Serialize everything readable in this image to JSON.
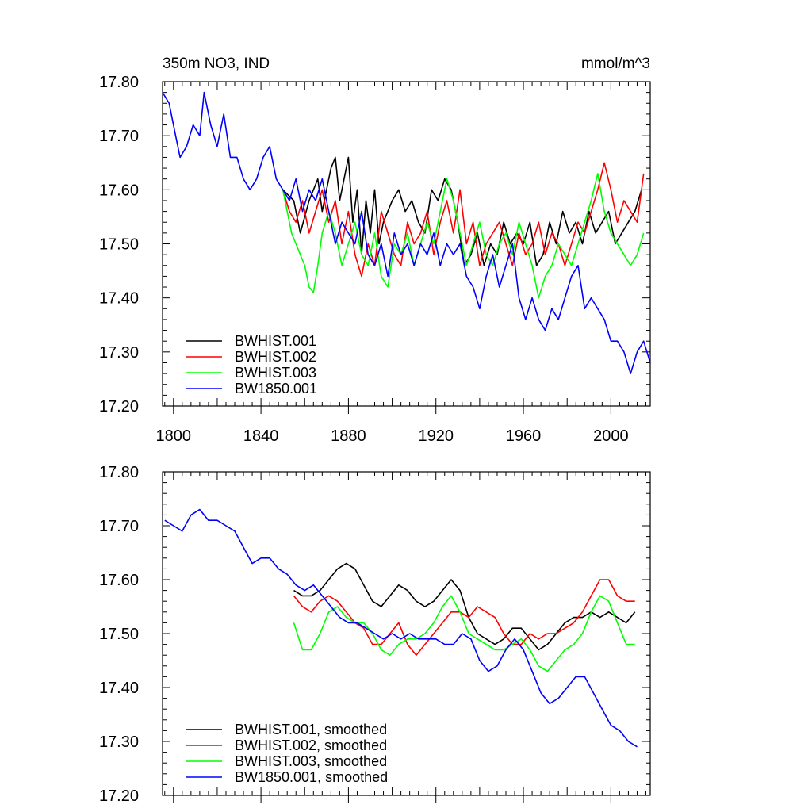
{
  "chart_data": [
    {
      "type": "line",
      "title": "350m NO3, IND",
      "units": "mmol/m^3",
      "xlim": [
        1795,
        2018
      ],
      "ylim": [
        17.2,
        17.8
      ],
      "yticks": [
        "17.20",
        "17.30",
        "17.40",
        "17.50",
        "17.60",
        "17.70",
        "17.80"
      ],
      "xticks": [
        "1800",
        "1840",
        "1880",
        "1920",
        "1960",
        "2000"
      ],
      "legend_position": "bottom-left",
      "series": [
        {
          "name": "BWHIST.001",
          "color": "#000000",
          "x": [
            1850,
            1855,
            1858,
            1862,
            1866,
            1868,
            1870,
            1872,
            1874,
            1876,
            1878,
            1880,
            1882,
            1884,
            1886,
            1888,
            1890,
            1892,
            1894,
            1896,
            1900,
            1903,
            1906,
            1909,
            1912,
            1915,
            1918,
            1921,
            1924,
            1927,
            1930,
            1933,
            1936,
            1939,
            1942,
            1945,
            1948,
            1951,
            1954,
            1957,
            1960,
            1963,
            1966,
            1969,
            1972,
            1975,
            1978,
            1981,
            1984,
            1987,
            1990,
            1993,
            1996,
            1999,
            2002,
            2005,
            2008,
            2011,
            2014
          ],
          "y": [
            17.6,
            17.58,
            17.52,
            17.58,
            17.62,
            17.56,
            17.6,
            17.64,
            17.66,
            17.58,
            17.62,
            17.66,
            17.54,
            17.6,
            17.48,
            17.58,
            17.52,
            17.6,
            17.5,
            17.54,
            17.58,
            17.6,
            17.56,
            17.58,
            17.54,
            17.52,
            17.6,
            17.58,
            17.62,
            17.6,
            17.54,
            17.46,
            17.48,
            17.52,
            17.46,
            17.5,
            17.48,
            17.54,
            17.5,
            17.52,
            17.5,
            17.54,
            17.46,
            17.48,
            17.54,
            17.5,
            17.56,
            17.52,
            17.54,
            17.5,
            17.56,
            17.52,
            17.54,
            17.56,
            17.5,
            17.52,
            17.54,
            17.56,
            17.6
          ]
        },
        {
          "name": "BWHIST.002",
          "color": "#ff0000",
          "x": [
            1850,
            1853,
            1856,
            1859,
            1862,
            1865,
            1868,
            1871,
            1874,
            1877,
            1880,
            1883,
            1886,
            1889,
            1892,
            1895,
            1898,
            1901,
            1904,
            1907,
            1910,
            1913,
            1916,
            1919,
            1922,
            1925,
            1928,
            1931,
            1934,
            1937,
            1940,
            1943,
            1946,
            1949,
            1952,
            1955,
            1958,
            1961,
            1964,
            1967,
            1970,
            1973,
            1976,
            1979,
            1982,
            1985,
            1988,
            1991,
            1994,
            1997,
            2000,
            2003,
            2006,
            2009,
            2012,
            2015
          ],
          "y": [
            17.6,
            17.56,
            17.54,
            17.58,
            17.52,
            17.56,
            17.6,
            17.54,
            17.58,
            17.5,
            17.56,
            17.48,
            17.44,
            17.5,
            17.46,
            17.56,
            17.52,
            17.48,
            17.46,
            17.54,
            17.5,
            17.52,
            17.56,
            17.48,
            17.54,
            17.58,
            17.52,
            17.6,
            17.5,
            17.54,
            17.46,
            17.5,
            17.52,
            17.54,
            17.5,
            17.46,
            17.52,
            17.48,
            17.5,
            17.54,
            17.48,
            17.52,
            17.5,
            17.46,
            17.5,
            17.54,
            17.52,
            17.56,
            17.6,
            17.65,
            17.6,
            17.54,
            17.58,
            17.56,
            17.54,
            17.63
          ]
        },
        {
          "name": "BWHIST.003",
          "color": "#00ff00",
          "x": [
            1850,
            1852,
            1854,
            1856,
            1858,
            1860,
            1862,
            1864,
            1866,
            1868,
            1871,
            1874,
            1877,
            1880,
            1883,
            1886,
            1889,
            1892,
            1895,
            1898,
            1901,
            1904,
            1907,
            1910,
            1913,
            1916,
            1919,
            1922,
            1925,
            1928,
            1931,
            1934,
            1937,
            1940,
            1943,
            1946,
            1949,
            1952,
            1955,
            1958,
            1961,
            1964,
            1967,
            1970,
            1973,
            1976,
            1979,
            1982,
            1985,
            1988,
            1991,
            1994,
            1997,
            2000,
            2003,
            2006,
            2009,
            2012,
            2015
          ],
          "y": [
            17.6,
            17.56,
            17.52,
            17.5,
            17.48,
            17.46,
            17.42,
            17.41,
            17.46,
            17.52,
            17.56,
            17.52,
            17.46,
            17.5,
            17.54,
            17.48,
            17.46,
            17.52,
            17.44,
            17.42,
            17.5,
            17.48,
            17.52,
            17.46,
            17.5,
            17.54,
            17.5,
            17.56,
            17.62,
            17.58,
            17.52,
            17.46,
            17.5,
            17.54,
            17.48,
            17.46,
            17.5,
            17.52,
            17.48,
            17.54,
            17.5,
            17.46,
            17.4,
            17.44,
            17.46,
            17.5,
            17.48,
            17.46,
            17.5,
            17.54,
            17.58,
            17.63,
            17.56,
            17.52,
            17.5,
            17.48,
            17.46,
            17.48,
            17.52
          ]
        },
        {
          "name": "BW1850.001",
          "color": "#0000ff",
          "x": [
            1795,
            1798,
            1801,
            1803,
            1806,
            1809,
            1812,
            1814,
            1817,
            1820,
            1823,
            1826,
            1829,
            1832,
            1835,
            1838,
            1841,
            1844,
            1847,
            1850,
            1853,
            1856,
            1859,
            1862,
            1865,
            1868,
            1871,
            1874,
            1877,
            1880,
            1883,
            1886,
            1889,
            1892,
            1895,
            1898,
            1901,
            1904,
            1907,
            1910,
            1913,
            1916,
            1919,
            1922,
            1925,
            1928,
            1931,
            1934,
            1937,
            1940,
            1943,
            1946,
            1949,
            1952,
            1955,
            1958,
            1961,
            1964,
            1967,
            1970,
            1973,
            1976,
            1979,
            1982,
            1985,
            1988,
            1991,
            1994,
            1997,
            2000,
            2003,
            2006,
            2009,
            2012,
            2015,
            2018
          ],
          "y": [
            17.78,
            17.76,
            17.7,
            17.66,
            17.68,
            17.72,
            17.7,
            17.78,
            17.72,
            17.68,
            17.74,
            17.66,
            17.66,
            17.62,
            17.6,
            17.62,
            17.66,
            17.68,
            17.62,
            17.6,
            17.58,
            17.62,
            17.56,
            17.6,
            17.58,
            17.62,
            17.56,
            17.5,
            17.54,
            17.52,
            17.5,
            17.56,
            17.48,
            17.46,
            17.5,
            17.44,
            17.52,
            17.48,
            17.5,
            17.46,
            17.5,
            17.48,
            17.52,
            17.46,
            17.5,
            17.48,
            17.5,
            17.44,
            17.42,
            17.38,
            17.44,
            17.48,
            17.42,
            17.46,
            17.5,
            17.4,
            17.36,
            17.4,
            17.36,
            17.34,
            17.38,
            17.36,
            17.4,
            17.44,
            17.46,
            17.38,
            17.4,
            17.38,
            17.36,
            17.32,
            17.32,
            17.3,
            17.26,
            17.3,
            17.32,
            17.28
          ]
        }
      ]
    },
    {
      "type": "line",
      "xlim": [
        1795,
        2018
      ],
      "ylim": [
        17.2,
        17.8
      ],
      "yticks": [
        "17.20",
        "17.30",
        "17.40",
        "17.50",
        "17.60",
        "17.70",
        "17.80"
      ],
      "legend_position": "bottom-left",
      "series": [
        {
          "name": "BWHIST.001, smoothed",
          "color": "#000000",
          "x": [
            1855,
            1859,
            1863,
            1867,
            1871,
            1875,
            1879,
            1883,
            1887,
            1891,
            1895,
            1899,
            1903,
            1907,
            1911,
            1915,
            1919,
            1923,
            1927,
            1931,
            1935,
            1939,
            1943,
            1947,
            1951,
            1955,
            1959,
            1963,
            1967,
            1971,
            1975,
            1979,
            1983,
            1987,
            1991,
            1995,
            1999,
            2003,
            2007,
            2011
          ],
          "y": [
            17.58,
            17.57,
            17.57,
            17.58,
            17.6,
            17.62,
            17.63,
            17.62,
            17.59,
            17.56,
            17.55,
            17.57,
            17.59,
            17.58,
            17.56,
            17.55,
            17.56,
            17.58,
            17.6,
            17.58,
            17.53,
            17.5,
            17.49,
            17.48,
            17.49,
            17.51,
            17.51,
            17.49,
            17.47,
            17.48,
            17.5,
            17.52,
            17.53,
            17.53,
            17.54,
            17.53,
            17.54,
            17.53,
            17.52,
            17.54
          ]
        },
        {
          "name": "BWHIST.002, smoothed",
          "color": "#ff0000",
          "x": [
            1855,
            1859,
            1863,
            1867,
            1871,
            1875,
            1879,
            1883,
            1887,
            1891,
            1895,
            1899,
            1903,
            1907,
            1911,
            1915,
            1919,
            1923,
            1927,
            1931,
            1935,
            1939,
            1943,
            1947,
            1951,
            1955,
            1959,
            1963,
            1967,
            1971,
            1975,
            1979,
            1983,
            1987,
            1991,
            1995,
            1999,
            2003,
            2007,
            2011
          ],
          "y": [
            17.57,
            17.55,
            17.54,
            17.56,
            17.57,
            17.56,
            17.54,
            17.52,
            17.51,
            17.48,
            17.48,
            17.5,
            17.52,
            17.48,
            17.46,
            17.48,
            17.5,
            17.52,
            17.54,
            17.54,
            17.53,
            17.55,
            17.54,
            17.53,
            17.5,
            17.48,
            17.48,
            17.5,
            17.49,
            17.5,
            17.5,
            17.51,
            17.52,
            17.54,
            17.57,
            17.6,
            17.6,
            17.57,
            17.56,
            17.56
          ]
        },
        {
          "name": "BWHIST.003, smoothed",
          "color": "#00ff00",
          "x": [
            1855,
            1859,
            1863,
            1867,
            1871,
            1875,
            1879,
            1883,
            1887,
            1891,
            1895,
            1899,
            1903,
            1907,
            1911,
            1915,
            1919,
            1923,
            1927,
            1931,
            1935,
            1939,
            1943,
            1947,
            1951,
            1955,
            1959,
            1963,
            1967,
            1971,
            1975,
            1979,
            1983,
            1987,
            1991,
            1995,
            1999,
            2003,
            2007,
            2011
          ],
          "y": [
            17.52,
            17.47,
            17.47,
            17.5,
            17.54,
            17.55,
            17.53,
            17.52,
            17.52,
            17.5,
            17.47,
            17.46,
            17.48,
            17.49,
            17.49,
            17.5,
            17.52,
            17.55,
            17.57,
            17.54,
            17.5,
            17.49,
            17.48,
            17.47,
            17.47,
            17.48,
            17.49,
            17.47,
            17.44,
            17.43,
            17.45,
            17.47,
            17.48,
            17.5,
            17.54,
            17.57,
            17.56,
            17.52,
            17.48,
            17.48
          ]
        },
        {
          "name": "BW1850.001, smoothed",
          "color": "#0000ff",
          "x": [
            1796,
            1800,
            1804,
            1808,
            1812,
            1816,
            1820,
            1824,
            1828,
            1832,
            1836,
            1840,
            1844,
            1848,
            1852,
            1856,
            1860,
            1864,
            1868,
            1872,
            1876,
            1880,
            1884,
            1888,
            1892,
            1896,
            1900,
            1904,
            1908,
            1912,
            1916,
            1920,
            1924,
            1928,
            1932,
            1936,
            1940,
            1944,
            1948,
            1952,
            1956,
            1960,
            1964,
            1968,
            1972,
            1976,
            1980,
            1984,
            1988,
            1992,
            1996,
            2000,
            2004,
            2008,
            2012
          ],
          "y": [
            17.71,
            17.7,
            17.69,
            17.72,
            17.73,
            17.71,
            17.71,
            17.7,
            17.69,
            17.66,
            17.63,
            17.64,
            17.64,
            17.62,
            17.61,
            17.59,
            17.58,
            17.59,
            17.57,
            17.55,
            17.53,
            17.52,
            17.52,
            17.51,
            17.5,
            17.49,
            17.5,
            17.49,
            17.5,
            17.49,
            17.49,
            17.49,
            17.48,
            17.48,
            17.5,
            17.49,
            17.45,
            17.43,
            17.44,
            17.47,
            17.49,
            17.47,
            17.43,
            17.39,
            17.37,
            17.38,
            17.4,
            17.42,
            17.42,
            17.39,
            17.36,
            17.33,
            17.32,
            17.3,
            17.29
          ]
        }
      ]
    }
  ]
}
